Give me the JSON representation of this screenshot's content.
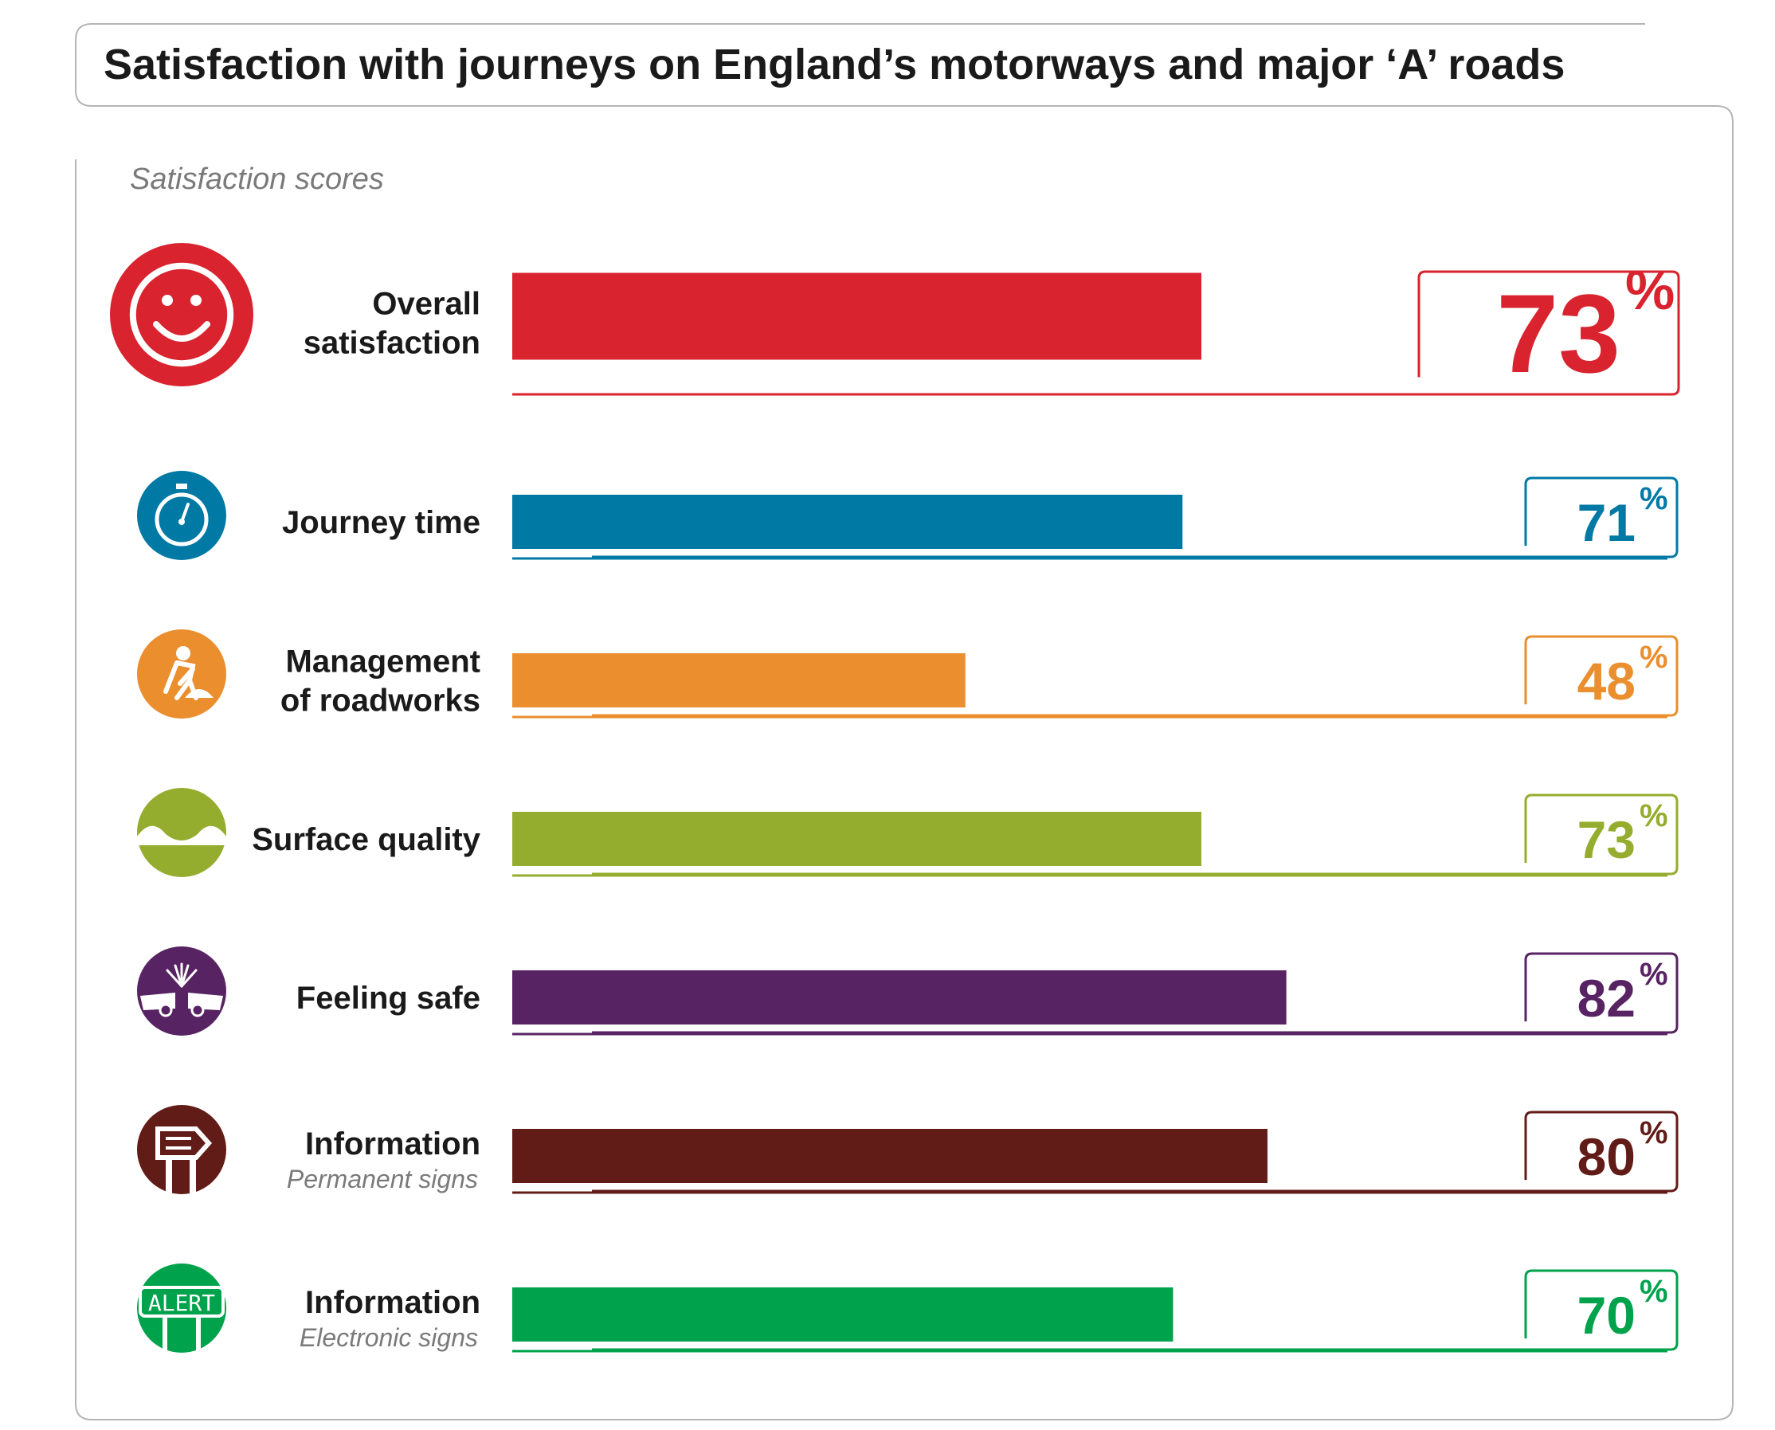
{
  "chart_data": {
    "type": "bar",
    "orientation": "horizontal",
    "title": "Satisfaction with journeys on England’s motorways and major ‘A’ roads",
    "subtitle": "Satisfaction scores",
    "xlim": [
      0,
      100
    ],
    "unit": "%",
    "grid": false,
    "legend": "none",
    "categories": [
      {
        "label": [
          "Overall",
          "satisfaction"
        ],
        "sublabel": "",
        "value": 73,
        "color": "#d9232e",
        "icon": "smiley-face-icon"
      },
      {
        "label": [
          "Journey time"
        ],
        "sublabel": "",
        "value": 71,
        "color": "#0079a5",
        "icon": "stopwatch-icon"
      },
      {
        "label": [
          "Management",
          "of roadworks"
        ],
        "sublabel": "",
        "value": 48,
        "color": "#ea8e2e",
        "icon": "roadworker-icon"
      },
      {
        "label": [
          "Surface quality"
        ],
        "sublabel": "",
        "value": 73,
        "color": "#95ad2e",
        "icon": "road-surface-icon"
      },
      {
        "label": [
          "Feeling safe"
        ],
        "sublabel": "",
        "value": 82,
        "color": "#572362",
        "icon": "car-collision-icon"
      },
      {
        "label": [
          "Information"
        ],
        "sublabel": "Permanent signs",
        "value": 80,
        "color": "#621c17",
        "icon": "signpost-icon"
      },
      {
        "label": [
          "Information"
        ],
        "sublabel": "Electronic signs",
        "value": 70,
        "color": "#00a24c",
        "icon": "alert-sign-icon",
        "icon_text": "ALERT"
      }
    ]
  }
}
